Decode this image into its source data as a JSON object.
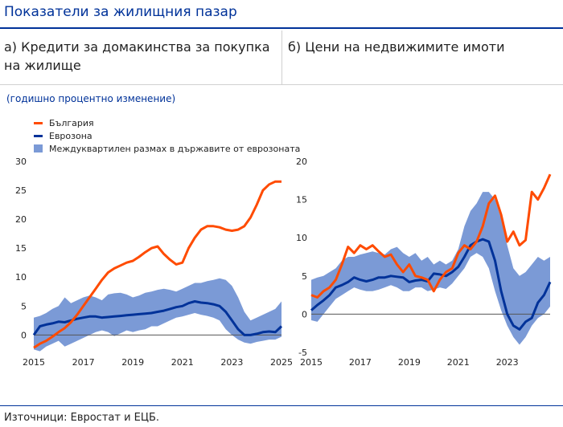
{
  "title": "Показатели за жилищния пазар",
  "panels": {
    "a_title": "а) Кредити за домакинства за покупка на жилище",
    "b_title": "б) Цени на недвижимите имоти"
  },
  "subtitle": "(годишно процентно изменение)",
  "legend": [
    {
      "label": "България",
      "color": "#ff4b00",
      "kind": "line"
    },
    {
      "label": "Еврозона",
      "color": "#003299",
      "kind": "line"
    },
    {
      "label": "Междуквартилен размах в държавите от еврозоната",
      "color": "#7b9ad6",
      "kind": "band"
    }
  ],
  "source": "Източници: Евростат и ЕЦБ.",
  "chart_data": [
    {
      "type": "line",
      "title": "а) Кредити за домакинства за покупка на жилище",
      "ylim": [
        -3,
        30
      ],
      "yticks": [
        0,
        5,
        10,
        15,
        20,
        25,
        30
      ],
      "xlim": [
        2015,
        2025
      ],
      "xticks": [
        "2015",
        "2017",
        "2019",
        "2021",
        "2023",
        "2025"
      ],
      "x": [
        2015,
        2015.25,
        2015.5,
        2015.75,
        2016,
        2016.25,
        2016.5,
        2016.75,
        2017,
        2017.25,
        2017.5,
        2017.75,
        2018,
        2018.25,
        2018.5,
        2018.75,
        2019,
        2019.25,
        2019.5,
        2019.75,
        2020,
        2020.25,
        2020.5,
        2020.75,
        2021,
        2021.25,
        2021.5,
        2021.75,
        2022,
        2022.25,
        2022.5,
        2022.75,
        2023,
        2023.25,
        2023.5,
        2023.75,
        2024,
        2024.25,
        2024.5,
        2024.75,
        2025
      ],
      "series": [
        {
          "name": "България",
          "values": [
            -2.2,
            -1.5,
            -1.0,
            -0.3,
            0.5,
            1.2,
            2.2,
            3.5,
            5.0,
            6.5,
            8.0,
            9.5,
            10.8,
            11.5,
            12.0,
            12.5,
            12.8,
            13.5,
            14.3,
            15.0,
            15.3,
            14.0,
            13.0,
            12.2,
            12.5,
            15.0,
            16.8,
            18.2,
            18.8,
            18.8,
            18.6,
            18.2,
            18.0,
            18.2,
            18.8,
            20.3,
            22.5,
            25.0,
            26.0,
            26.5,
            26.5
          ]
        },
        {
          "name": "Еврозона",
          "values": [
            0.0,
            1.5,
            1.8,
            2.0,
            2.3,
            2.2,
            2.5,
            2.8,
            3.0,
            3.2,
            3.2,
            3.0,
            3.1,
            3.2,
            3.3,
            3.4,
            3.5,
            3.6,
            3.7,
            3.8,
            4.0,
            4.2,
            4.5,
            4.8,
            5.0,
            5.5,
            5.8,
            5.6,
            5.5,
            5.3,
            5.0,
            4.0,
            2.5,
            1.0,
            0.0,
            0.0,
            0.2,
            0.5,
            0.6,
            0.5,
            1.5
          ]
        },
        {
          "name": "Междуквартилен размах в държавите от еврозоната (долна граница)",
          "values": [
            -2.5,
            -2.8,
            -2.0,
            -1.5,
            -1.0,
            -2.0,
            -1.5,
            -1.0,
            -0.5,
            0.0,
            0.5,
            0.8,
            0.5,
            -0.2,
            0.3,
            0.8,
            0.5,
            0.8,
            1.0,
            1.5,
            1.5,
            2.0,
            2.5,
            3.0,
            3.2,
            3.5,
            3.8,
            3.5,
            3.3,
            3.0,
            2.5,
            1.0,
            0.0,
            -0.8,
            -1.3,
            -1.5,
            -1.2,
            -1.0,
            -0.8,
            -0.8,
            -0.3
          ]
        },
        {
          "name": "Междуквартилен размах в държавите от еврозоната (горна граница)",
          "values": [
            3.0,
            3.3,
            3.8,
            4.5,
            5.0,
            6.5,
            5.5,
            6.0,
            6.5,
            6.8,
            6.5,
            6.0,
            7.0,
            7.2,
            7.3,
            7.0,
            6.5,
            6.8,
            7.3,
            7.5,
            7.8,
            8.0,
            7.8,
            7.5,
            8.0,
            8.5,
            9.0,
            9.0,
            9.3,
            9.5,
            9.8,
            9.5,
            8.5,
            6.5,
            4.0,
            2.5,
            3.0,
            3.5,
            4.0,
            4.5,
            5.8
          ]
        }
      ]
    },
    {
      "type": "line",
      "title": "б) Цени на недвижимите имоти",
      "ylim": [
        -5,
        20
      ],
      "yticks": [
        -5,
        0,
        5,
        10,
        15,
        20
      ],
      "xlim": [
        2015,
        2024.75
      ],
      "xticks": [
        "2015",
        "2017",
        "2019",
        "2021",
        "2023"
      ],
      "x": [
        2015,
        2015.25,
        2015.5,
        2015.75,
        2016,
        2016.25,
        2016.5,
        2016.75,
        2017,
        2017.25,
        2017.5,
        2017.75,
        2018,
        2018.25,
        2018.5,
        2018.75,
        2019,
        2019.25,
        2019.5,
        2019.75,
        2020,
        2020.25,
        2020.5,
        2020.75,
        2021,
        2021.25,
        2021.5,
        2021.75,
        2022,
        2022.25,
        2022.5,
        2022.75,
        2023,
        2023.25,
        2023.5,
        2023.75,
        2024,
        2024.25,
        2024.5,
        2024.75
      ],
      "series": [
        {
          "name": "България",
          "values": [
            2.5,
            2.2,
            3.0,
            3.5,
            4.5,
            6.5,
            8.8,
            8.0,
            9.0,
            8.5,
            9.0,
            8.2,
            7.5,
            7.8,
            6.5,
            5.5,
            6.5,
            5.0,
            4.8,
            4.5,
            3.0,
            4.5,
            5.5,
            6.0,
            8.0,
            9.0,
            8.5,
            9.5,
            11.5,
            14.5,
            15.5,
            13.0,
            9.5,
            10.8,
            9.0,
            9.7,
            16.0,
            15.0,
            16.5,
            18.3
          ]
        },
        {
          "name": "Еврозона",
          "values": [
            0.5,
            1.2,
            1.8,
            2.5,
            3.5,
            3.8,
            4.2,
            4.8,
            4.5,
            4.3,
            4.5,
            4.8,
            4.8,
            5.0,
            4.9,
            4.8,
            4.2,
            4.4,
            4.5,
            4.3,
            5.3,
            5.2,
            5.0,
            5.5,
            6.2,
            7.5,
            9.0,
            9.5,
            9.8,
            9.5,
            7.0,
            3.0,
            0.0,
            -1.5,
            -2.0,
            -1.0,
            -0.5,
            1.5,
            2.5,
            4.2
          ]
        },
        {
          "name": "Междуквартилен размах в държавите от еврозоната (долна граница)",
          "values": [
            -0.8,
            -1.0,
            0.0,
            1.0,
            2.0,
            2.5,
            3.0,
            3.5,
            3.2,
            3.0,
            3.0,
            3.2,
            3.5,
            3.8,
            3.5,
            3.0,
            3.0,
            3.5,
            3.5,
            3.0,
            3.2,
            3.5,
            3.3,
            4.0,
            5.0,
            6.0,
            7.5,
            8.0,
            7.5,
            6.0,
            3.0,
            0.5,
            -1.5,
            -3.0,
            -4.0,
            -3.0,
            -1.5,
            -0.5,
            0.0,
            1.0
          ]
        },
        {
          "name": "Междуквартилен размах в държавите от еврозоната (горна граница)",
          "values": [
            4.5,
            4.8,
            5.0,
            5.5,
            6.0,
            7.0,
            7.5,
            7.5,
            7.8,
            8.0,
            8.2,
            8.0,
            7.8,
            8.5,
            8.8,
            8.0,
            7.5,
            8.0,
            7.0,
            7.5,
            6.5,
            7.0,
            6.5,
            7.0,
            8.5,
            11.5,
            13.5,
            14.5,
            16.0,
            16.0,
            15.0,
            12.5,
            9.0,
            6.0,
            5.0,
            5.5,
            6.5,
            7.5,
            7.0,
            7.5
          ]
        }
      ]
    }
  ]
}
